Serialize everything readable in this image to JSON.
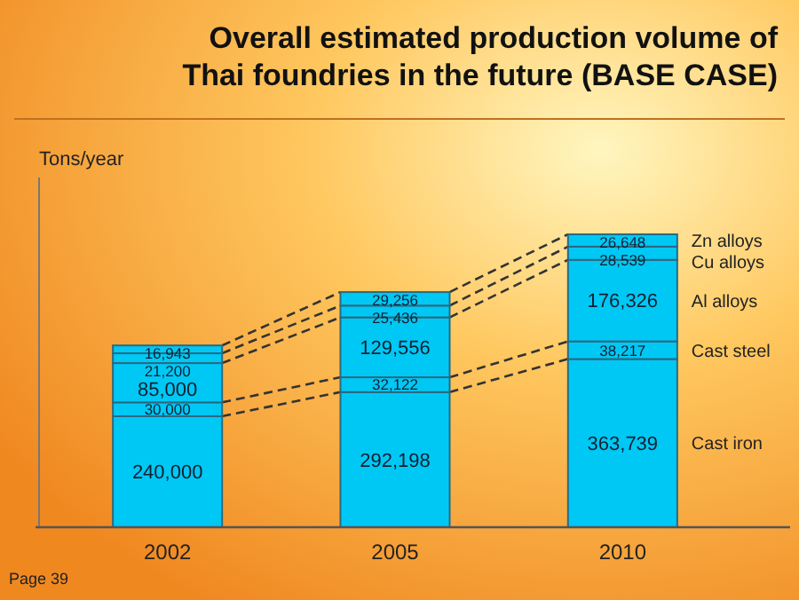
{
  "chart_data": {
    "type": "bar",
    "stacked": true,
    "title": "Overall estimated production volume of Thai foundries in the future (BASE CASE)",
    "ylabel": "Tons/year",
    "categories": [
      "2002",
      "2005",
      "2010"
    ],
    "series": [
      {
        "name": "Cast iron",
        "color": "#00c8f5",
        "values": [
          240000,
          292198,
          363739
        ],
        "value_labels": [
          "240,000",
          "292,198",
          "363,739"
        ]
      },
      {
        "name": "Cast steel",
        "color": "#00c8f5",
        "values": [
          30000,
          32122,
          38217
        ],
        "value_labels": [
          "30,000",
          "32,122",
          "38,217"
        ]
      },
      {
        "name": "Al alloys",
        "color": "#00c8f5",
        "values": [
          85000,
          129556,
          176326
        ],
        "value_labels": [
          "85,000",
          "129,556",
          "176,326"
        ]
      },
      {
        "name": "Cu alloys",
        "color": "#00c8f5",
        "values": [
          21200,
          25436,
          28539
        ],
        "value_labels": [
          "21,200",
          "25,436",
          "28,539"
        ]
      },
      {
        "name": "Zn alloys",
        "color": "#00c8f5",
        "values": [
          16943,
          29256,
          26648
        ],
        "value_labels": [
          "16,943",
          "29,256",
          "26,648"
        ]
      }
    ],
    "annotations": [
      "Page 39"
    ]
  }
}
